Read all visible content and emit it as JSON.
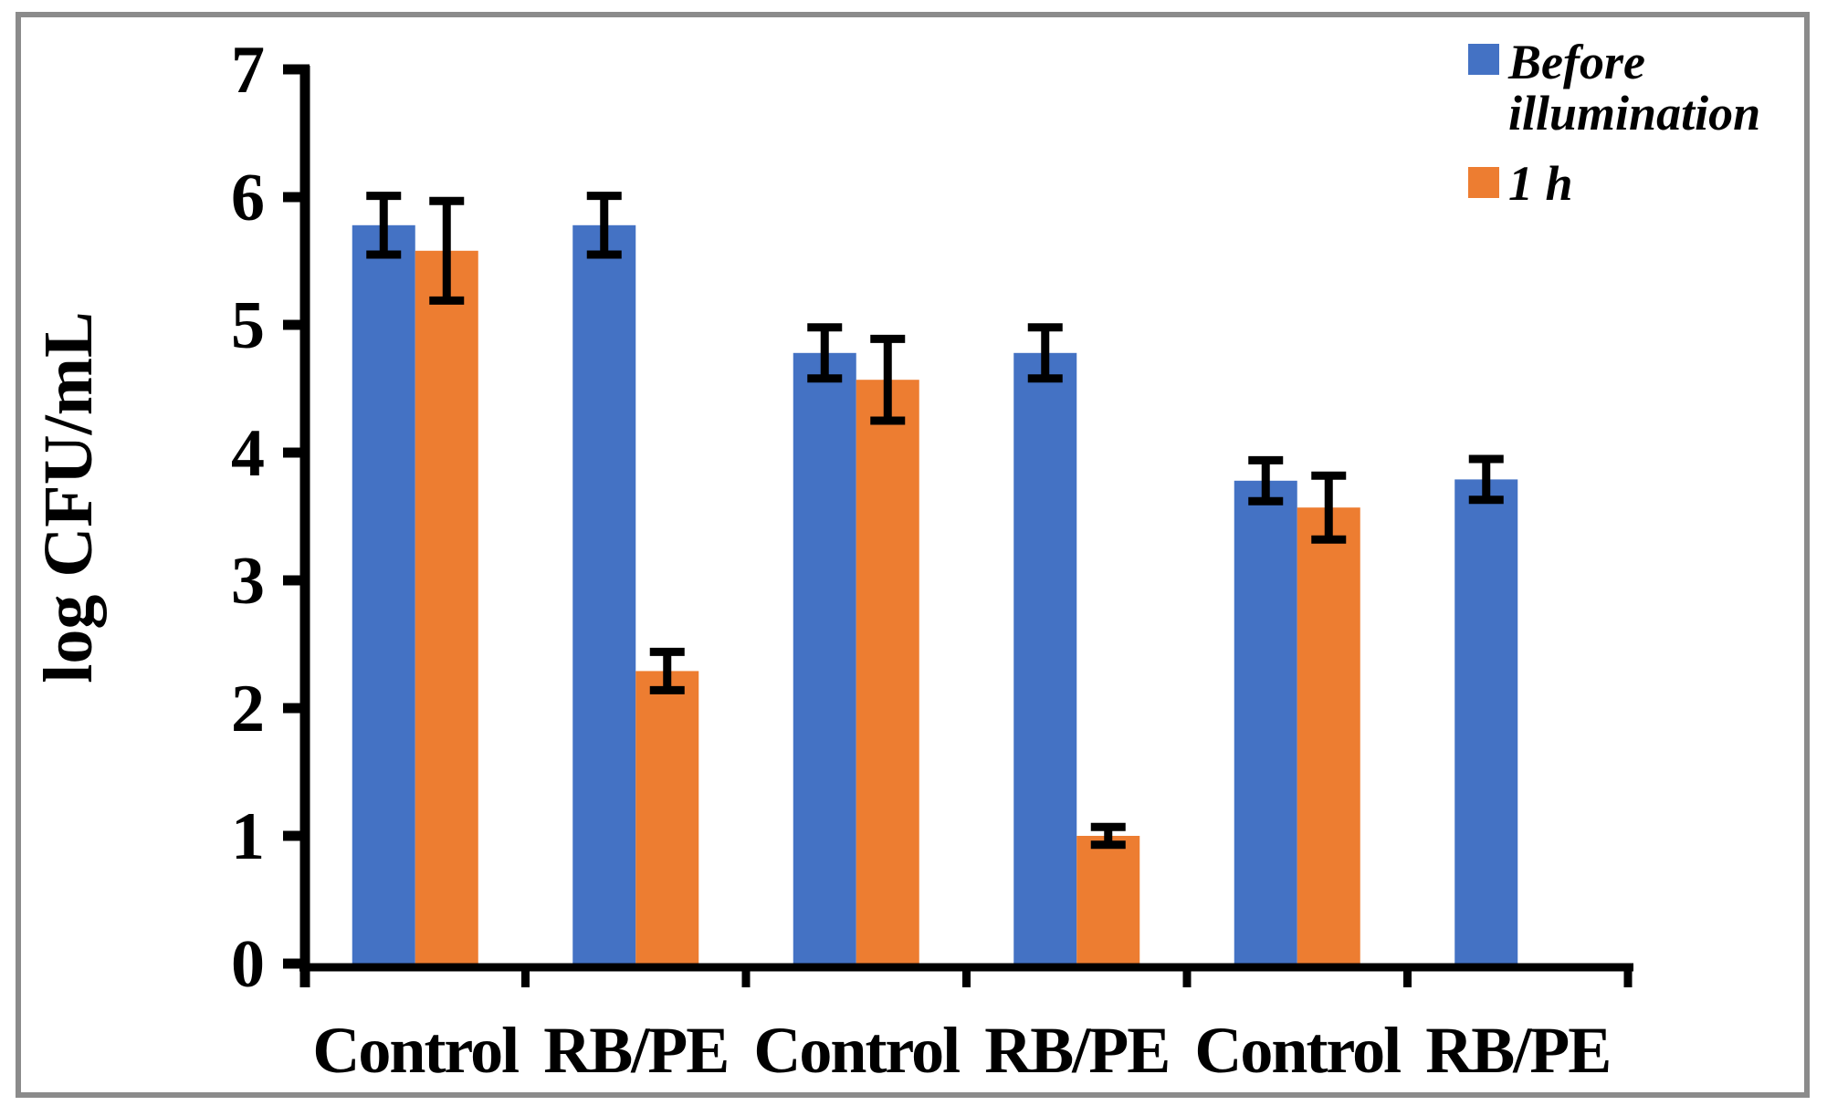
{
  "figure": {
    "background": "#ffffff",
    "border_color": "#8b8b8b",
    "axis_color": "#000000",
    "text_color": "#000000"
  },
  "chart_data": {
    "type": "bar",
    "title": "",
    "xlabel": "",
    "ylabel": "log CFU/mL",
    "categories": [
      "Control",
      "RB/PE",
      "Control",
      "RB/PE",
      "Control",
      "RB/PE"
    ],
    "series": [
      {
        "name": "Before illumination",
        "color": "#4472C4",
        "values": [
          5.78,
          5.78,
          4.78,
          4.78,
          3.78,
          3.79
        ],
        "errors": [
          0.23,
          0.23,
          0.2,
          0.2,
          0.16,
          0.16
        ]
      },
      {
        "name": "1 h",
        "color": "#ED7D31",
        "values": [
          5.58,
          2.29,
          4.57,
          1.0,
          3.57,
          null
        ],
        "errors": [
          0.39,
          0.15,
          0.32,
          0.07,
          0.25,
          null
        ]
      }
    ],
    "ylim": [
      0,
      7
    ],
    "yticks": [
      0,
      1,
      2,
      3,
      4,
      5,
      6,
      7
    ],
    "grid": false,
    "error_bars": true,
    "legend_position": "top-right"
  },
  "legend": {
    "items": [
      {
        "label": "Before illumination",
        "lines": [
          "Before",
          "illumination"
        ],
        "color": "#4472C4"
      },
      {
        "label": "1 h",
        "lines": [
          "1 h"
        ],
        "color": "#ED7D31"
      }
    ]
  }
}
